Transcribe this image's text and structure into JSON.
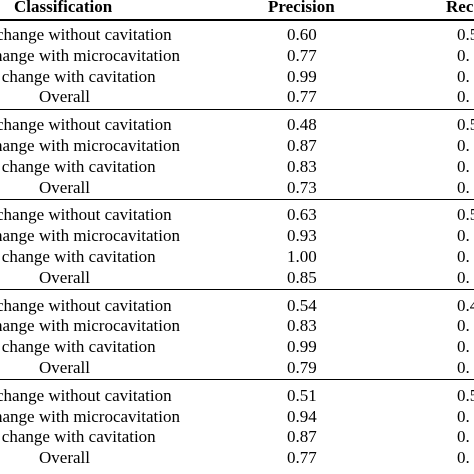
{
  "table": {
    "header": {
      "classification": "Classification",
      "precision": "Precision",
      "recall_fragment": "Rec"
    },
    "groups": [
      {
        "rows": [
          {
            "label": "change without cavitation",
            "precision": "0.60",
            "recall_fragment": "0.5"
          },
          {
            "label": "hange with microcavitation",
            "precision": "0.77",
            "recall_fragment": "0."
          },
          {
            "label": "e change with cavitation",
            "precision": "0.99",
            "recall_fragment": "0."
          },
          {
            "label": "Overall",
            "precision": "0.77",
            "recall_fragment": "0."
          }
        ]
      },
      {
        "rows": [
          {
            "label": "change without cavitation",
            "precision": "0.48",
            "recall_fragment": "0.5"
          },
          {
            "label": "hange with microcavitation",
            "precision": "0.87",
            "recall_fragment": "0."
          },
          {
            "label": "e change with cavitation",
            "precision": "0.83",
            "recall_fragment": "0."
          },
          {
            "label": "Overall",
            "precision": "0.73",
            "recall_fragment": "0."
          }
        ]
      },
      {
        "rows": [
          {
            "label": "change without cavitation",
            "precision": "0.63",
            "recall_fragment": "0.5"
          },
          {
            "label": "hange with microcavitation",
            "precision": "0.93",
            "recall_fragment": "0."
          },
          {
            "label": "e change with cavitation",
            "precision": "1.00",
            "recall_fragment": "0."
          },
          {
            "label": "Overall",
            "precision": "0.85",
            "recall_fragment": "0."
          }
        ]
      },
      {
        "rows": [
          {
            "label": "change without cavitation",
            "precision": "0.54",
            "recall_fragment": "0.4"
          },
          {
            "label": "hange with microcavitation",
            "precision": "0.83",
            "recall_fragment": "0."
          },
          {
            "label": "e change with cavitation",
            "precision": "0.99",
            "recall_fragment": "0."
          },
          {
            "label": "Overall",
            "precision": "0.79",
            "recall_fragment": "0."
          }
        ]
      },
      {
        "rows": [
          {
            "label": "change without cavitation",
            "precision": "0.51",
            "recall_fragment": "0.5"
          },
          {
            "label": "hange with microcavitation",
            "precision": "0.94",
            "recall_fragment": "0."
          },
          {
            "label": "e change with cavitation",
            "precision": "0.87",
            "recall_fragment": "0."
          },
          {
            "label": "Overall",
            "precision": "0.77",
            "recall_fragment": "0."
          }
        ]
      }
    ]
  }
}
